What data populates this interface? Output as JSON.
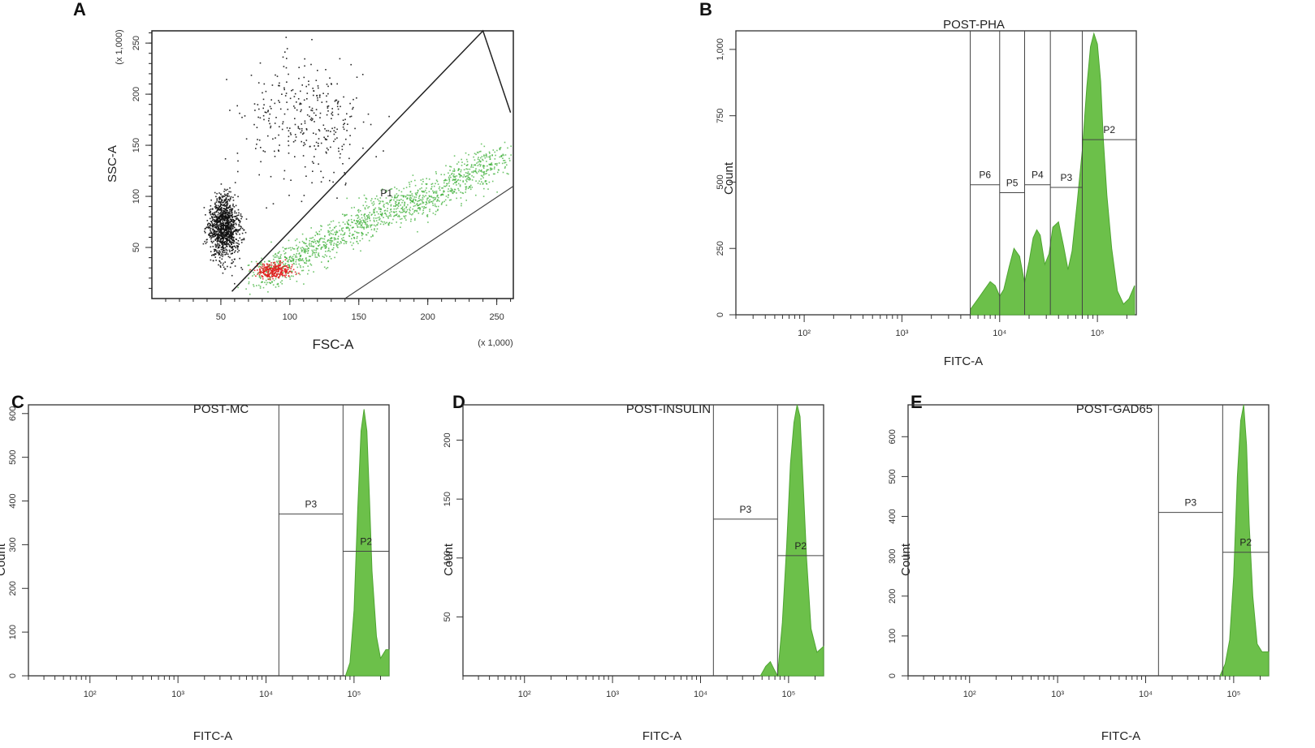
{
  "chart_data": [
    {
      "panel_label": "A",
      "type": "scatter",
      "title": "",
      "xlabel": "FSC-A",
      "ylabel": "SSC-A",
      "x_multiplier": "(x 1,000)",
      "y_multiplier": "(x 1,000)",
      "xlim": [
        0,
        262
      ],
      "ylim": [
        0,
        262
      ],
      "xticks": [
        "50",
        "100",
        "150",
        "200",
        "250"
      ],
      "yticks": [
        "50",
        "100",
        "150",
        "200",
        "250"
      ],
      "gate_label": "P1",
      "series_colors": {
        "outside": "#111111",
        "p1": "#3fb03a",
        "debris": "#e21d1d"
      },
      "series": [
        {
          "color": "#111111",
          "center": [
            52,
            70
          ],
          "spread": [
            10,
            28
          ],
          "count": 1100
        },
        {
          "color": "#111111",
          "center": [
            110,
            175
          ],
          "spread": [
            40,
            55
          ],
          "count": 330
        },
        {
          "color": "#3fb03a",
          "center": [
            150,
            95
          ],
          "spread": [
            40,
            32
          ],
          "count": 1400
        },
        {
          "color": "#e21d1d",
          "center": [
            88,
            28
          ],
          "spread": [
            12,
            7
          ],
          "count": 260
        }
      ]
    },
    {
      "panel_label": "B",
      "type": "area",
      "title": "POST-PHA",
      "xlabel": "FITC-A",
      "ylabel": "Count",
      "x_scale": "log",
      "xlim": [
        20,
        250000
      ],
      "ylim": [
        0,
        1070
      ],
      "xtick_labels": [
        "10²",
        "10³",
        "10⁴",
        "10⁵"
      ],
      "yticks": [
        "0",
        "250",
        "500",
        "750",
        "1,000"
      ],
      "fill_color": "#6cc04a",
      "x": [
        5000,
        6000,
        7000,
        8000,
        9000,
        10000,
        11000,
        12500,
        14000,
        16000,
        18000,
        20000,
        22000,
        24000,
        26000,
        29000,
        32000,
        35000,
        40000,
        45000,
        50000,
        55000,
        62000,
        70000,
        78000,
        85000,
        92000,
        100000,
        108000,
        115000,
        125000,
        140000,
        160000,
        185000,
        210000,
        240000
      ],
      "y": [
        20,
        60,
        95,
        125,
        110,
        70,
        95,
        180,
        250,
        220,
        120,
        200,
        290,
        320,
        300,
        190,
        230,
        330,
        350,
        260,
        170,
        240,
        420,
        620,
        860,
        1010,
        1060,
        1020,
        880,
        660,
        450,
        250,
        90,
        40,
        60,
        110
      ],
      "gates": [
        {
          "name": "P6",
          "range": [
            5000,
            10000
          ],
          "level": 490
        },
        {
          "name": "P5",
          "range": [
            10000,
            18000
          ],
          "level": 460
        },
        {
          "name": "P4",
          "range": [
            18000,
            33000
          ],
          "level": 490
        },
        {
          "name": "P3",
          "range": [
            33000,
            70000
          ],
          "level": 480
        },
        {
          "name": "P2",
          "range": [
            70000,
            250000
          ],
          "level": 660
        }
      ]
    },
    {
      "panel_label": "C",
      "type": "area",
      "title": "POST-MC",
      "xlabel": "FITC-A",
      "ylabel": "Count",
      "x_scale": "log",
      "xlim": [
        20,
        250000
      ],
      "ylim": [
        0,
        620
      ],
      "xtick_labels": [
        "10²",
        "10³",
        "10⁴",
        "10⁵"
      ],
      "yticks": [
        "0",
        "100",
        "200",
        "300",
        "400",
        "500",
        "600"
      ],
      "fill_color": "#6cc04a",
      "x": [
        80000,
        90000,
        100000,
        110000,
        120000,
        130000,
        140000,
        150000,
        160000,
        180000,
        200000,
        230000,
        250000
      ],
      "y": [
        0,
        30,
        150,
        380,
        560,
        610,
        560,
        400,
        240,
        90,
        40,
        60,
        60
      ],
      "gates": [
        {
          "name": "P3",
          "range": [
            14000,
            75000
          ],
          "level": 370
        },
        {
          "name": "P2",
          "range": [
            75000,
            250000
          ],
          "level": 285
        }
      ]
    },
    {
      "panel_label": "D",
      "type": "area",
      "title": "POST-INSULIN",
      "xlabel": "FITC-A",
      "ylabel": "Count",
      "x_scale": "log",
      "xlim": [
        20,
        250000
      ],
      "ylim": [
        0,
        230
      ],
      "xtick_labels": [
        "10²",
        "10³",
        "10⁴",
        "10⁵"
      ],
      "yticks": [
        "50",
        "100",
        "150",
        "200"
      ],
      "fill_color": "#6cc04a",
      "x": [
        48000,
        55000,
        62000,
        68000,
        75000,
        85000,
        95000,
        105000,
        115000,
        125000,
        135000,
        145000,
        160000,
        180000,
        210000,
        250000
      ],
      "y": [
        0,
        8,
        12,
        6,
        0,
        45,
        110,
        180,
        215,
        230,
        220,
        170,
        100,
        40,
        20,
        25
      ],
      "gates": [
        {
          "name": "P3",
          "range": [
            14000,
            75000
          ],
          "level": 133
        },
        {
          "name": "P2",
          "range": [
            75000,
            250000
          ],
          "level": 102
        }
      ]
    },
    {
      "panel_label": "E",
      "type": "area",
      "title": "POST-GAD65",
      "xlabel": "FITC-A",
      "ylabel": "Count",
      "x_scale": "log",
      "xlim": [
        20,
        250000
      ],
      "ylim": [
        0,
        680
      ],
      "xtick_labels": [
        "10²",
        "10³",
        "10⁴",
        "10⁵"
      ],
      "yticks": [
        "0",
        "100",
        "200",
        "300",
        "400",
        "500",
        "600"
      ],
      "fill_color": "#6cc04a",
      "x": [
        70000,
        80000,
        90000,
        100000,
        110000,
        120000,
        130000,
        140000,
        150000,
        165000,
        185000,
        210000,
        250000
      ],
      "y": [
        0,
        30,
        90,
        250,
        500,
        640,
        680,
        580,
        380,
        200,
        80,
        60,
        60
      ],
      "gates": [
        {
          "name": "P3",
          "range": [
            14000,
            75000
          ],
          "level": 410
        },
        {
          "name": "P2",
          "range": [
            75000,
            250000
          ],
          "level": 310
        }
      ]
    }
  ]
}
